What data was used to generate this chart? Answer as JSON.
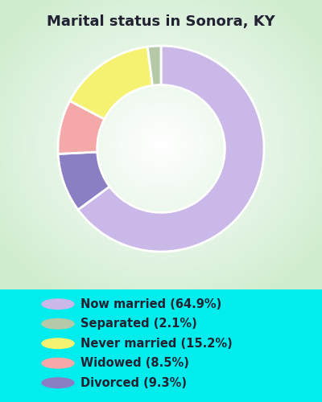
{
  "title": "Marital status in Sonora, KY",
  "slices": [
    64.9,
    2.1,
    15.2,
    8.5,
    9.3
  ],
  "labels": [
    "Now married (64.9%)",
    "Separated (2.1%)",
    "Never married (15.2%)",
    "Widowed (8.5%)",
    "Divorced (9.3%)"
  ],
  "colors": [
    "#c9b8e8",
    "#b5c9a8",
    "#f5f272",
    "#f5a8a8",
    "#8b7fc4"
  ],
  "background_bottom": "#00eded",
  "title_color": "#222233",
  "title_fontsize": 13,
  "legend_fontsize": 10.5,
  "donut_width": 0.38,
  "wedge_order": [
    0,
    4,
    3,
    2,
    1
  ],
  "start_angle": 90,
  "chart_bg_color": "#d8eed8"
}
